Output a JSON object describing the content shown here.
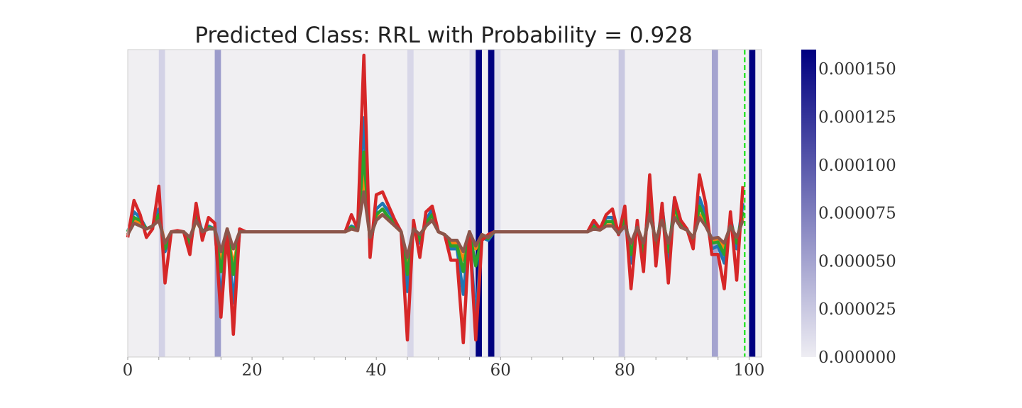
{
  "chart_data": {
    "type": "line",
    "title": "Predicted Class: RRL with Probability = 0.928",
    "xlabel": "",
    "ylabel": "",
    "xlim": [
      0,
      102
    ],
    "ylim": [
      -2.2,
      3.2
    ],
    "x_ticks": [
      0,
      20,
      40,
      60,
      80,
      100
    ],
    "x_tick_labels": [
      "0",
      "20",
      "40",
      "60",
      "80",
      "100"
    ],
    "grid": false,
    "background_color": "#f0eff2",
    "marker_line": {
      "x": 99.3,
      "color": "#00e000",
      "style": "dashed"
    },
    "importance_bands": [
      {
        "x": 5.5,
        "value": 1.8e-05
      },
      {
        "x": 14.5,
        "value": 5.5e-05
      },
      {
        "x": 45.5,
        "value": 1.5e-05
      },
      {
        "x": 55.5,
        "value": 1e-05
      },
      {
        "x": 56.5,
        "value": 0.00016
      },
      {
        "x": 58.5,
        "value": 0.00016
      },
      {
        "x": 59.5,
        "value": 1e-05
      },
      {
        "x": 79.5,
        "value": 2.5e-05
      },
      {
        "x": 94.5,
        "value": 5e-05
      },
      {
        "x": 100.5,
        "value": 0.00016
      }
    ],
    "colorbar": {
      "min": 0.0,
      "max": 0.00016,
      "colors": [
        "#eeedf3",
        "#000080"
      ],
      "ticks": [
        0.0,
        2.5e-05,
        5e-05,
        7.5e-05,
        0.0001,
        0.000125,
        0.00015
      ],
      "tick_labels": [
        "0.000000",
        "0.000025",
        "0.000050",
        "0.000075",
        "0.000100",
        "0.000125",
        "0.000150"
      ]
    },
    "series": [
      {
        "color": "#1f77b4",
        "x": [
          0,
          1,
          2,
          3,
          4,
          5,
          6,
          7,
          8,
          9,
          10,
          11,
          12,
          13,
          14,
          15,
          16,
          17,
          18,
          19,
          20,
          21,
          22,
          23,
          24,
          25,
          26,
          27,
          28,
          29,
          30,
          31,
          32,
          33,
          34,
          35,
          36,
          37,
          38,
          39,
          40,
          41,
          42,
          43,
          44,
          45,
          46,
          47,
          48,
          49,
          50,
          51,
          52,
          53,
          54,
          55,
          56,
          57,
          58,
          59,
          60,
          61,
          62,
          63,
          64,
          65,
          66,
          67,
          68,
          69,
          70,
          71,
          72,
          73,
          74,
          75,
          76,
          77,
          78,
          79,
          80,
          81,
          82,
          83,
          84,
          85,
          86,
          87,
          88,
          89,
          90,
          91,
          92,
          93,
          94,
          95,
          96,
          97,
          98,
          99
        ],
        "y": [
          0,
          0.35,
          0.25,
          0.05,
          0.1,
          0.4,
          -0.35,
          0,
          0,
          0,
          -0.3,
          0.35,
          0,
          0.1,
          0.05,
          -1.2,
          0.05,
          -1.25,
          0,
          0,
          0,
          0,
          0,
          0,
          0,
          0,
          0,
          0,
          0,
          0,
          0,
          0,
          0,
          0,
          0,
          0,
          0.1,
          0.05,
          2.0,
          -0.3,
          0.4,
          0.5,
          0.35,
          0.2,
          0,
          -1.05,
          0.1,
          -0.2,
          0.2,
          0.4,
          0,
          -0.05,
          -0.3,
          -0.3,
          -1.1,
          0,
          -1.6,
          -0.1,
          -0.15,
          0,
          0,
          0,
          0,
          0,
          0,
          0,
          0,
          0,
          0,
          0,
          0,
          0,
          0,
          0,
          0,
          0.12,
          0.05,
          0.25,
          0.25,
          -0.05,
          0.3,
          -0.55,
          0.15,
          -0.5,
          0.75,
          -0.4,
          0.45,
          -0.5,
          0.6,
          0.15,
          0.05,
          -0.2,
          0.6,
          0.3,
          -0.3,
          -0.25,
          -0.55,
          0.25,
          -0.3,
          0.5
        ]
      },
      {
        "color": "#ff7f0e",
        "x": [
          0,
          1,
          2,
          3,
          4,
          5,
          6,
          7,
          8,
          9,
          10,
          11,
          12,
          13,
          14,
          15,
          16,
          17,
          18,
          19,
          20,
          21,
          22,
          23,
          24,
          25,
          26,
          27,
          28,
          29,
          30,
          31,
          32,
          33,
          34,
          35,
          36,
          37,
          38,
          39,
          40,
          41,
          42,
          43,
          44,
          45,
          46,
          47,
          48,
          49,
          50,
          51,
          52,
          53,
          54,
          55,
          56,
          57,
          58,
          59,
          60,
          61,
          62,
          63,
          64,
          65,
          66,
          67,
          68,
          69,
          70,
          71,
          72,
          73,
          74,
          75,
          76,
          77,
          78,
          79,
          80,
          81,
          82,
          83,
          84,
          85,
          86,
          87,
          88,
          89,
          90,
          91,
          92,
          93,
          94,
          95,
          96,
          97,
          98,
          99
        ],
        "y": [
          -0.05,
          0.2,
          0.15,
          0.05,
          0.1,
          0.25,
          -0.2,
          0,
          0,
          0,
          -0.15,
          0.2,
          0,
          0.05,
          0.05,
          -0.55,
          0.05,
          -0.6,
          0,
          0,
          0,
          0,
          0,
          0,
          0,
          0,
          0,
          0,
          0,
          0,
          0,
          0,
          0,
          0,
          0,
          0,
          0.05,
          0.02,
          1.0,
          -0.15,
          0.25,
          0.3,
          0.2,
          0.1,
          0,
          -0.55,
          0.05,
          -0.1,
          0.1,
          0.25,
          0,
          -0.05,
          -0.2,
          -0.2,
          -0.5,
          0,
          -0.3,
          -0.05,
          -0.1,
          0,
          0,
          0,
          0,
          0,
          0,
          0,
          0,
          0,
          0,
          0,
          0,
          0,
          0,
          0,
          0,
          0.06,
          0.03,
          0.12,
          0.12,
          -0.03,
          0.15,
          -0.3,
          0.1,
          -0.25,
          0.4,
          -0.2,
          0.25,
          -0.25,
          0.3,
          0.08,
          0.03,
          -0.1,
          0.3,
          0.15,
          -0.15,
          -0.12,
          -0.3,
          0.12,
          -0.15,
          0.25
        ]
      },
      {
        "color": "#2ca02c",
        "x": [
          0,
          1,
          2,
          3,
          4,
          5,
          6,
          7,
          8,
          9,
          10,
          11,
          12,
          13,
          14,
          15,
          16,
          17,
          18,
          19,
          20,
          21,
          22,
          23,
          24,
          25,
          26,
          27,
          28,
          29,
          30,
          31,
          32,
          33,
          34,
          35,
          36,
          37,
          38,
          39,
          40,
          41,
          42,
          43,
          44,
          45,
          46,
          47,
          48,
          49,
          50,
          51,
          52,
          53,
          54,
          55,
          56,
          57,
          58,
          59,
          60,
          61,
          62,
          63,
          64,
          65,
          66,
          67,
          68,
          69,
          70,
          71,
          72,
          73,
          74,
          75,
          76,
          77,
          78,
          79,
          80,
          81,
          82,
          83,
          84,
          85,
          86,
          87,
          88,
          89,
          90,
          91,
          92,
          93,
          94,
          95,
          96,
          97,
          98,
          99
        ],
        "y": [
          0,
          0.25,
          0.2,
          0.05,
          0.1,
          0.3,
          -0.3,
          0,
          0,
          0,
          -0.2,
          0.25,
          0,
          0.08,
          0.05,
          -0.7,
          0.05,
          -0.75,
          0,
          0,
          0,
          0,
          0,
          0,
          0,
          0,
          0,
          0,
          0,
          0,
          0,
          0,
          0,
          0,
          0,
          0,
          0.08,
          0.03,
          1.4,
          -0.2,
          0.3,
          0.4,
          0.25,
          0.15,
          0,
          -0.75,
          0.08,
          -0.15,
          0.15,
          0.3,
          0,
          -0.05,
          -0.25,
          -0.25,
          -0.7,
          0,
          -0.6,
          -0.08,
          -0.12,
          0,
          0,
          0,
          0,
          0,
          0,
          0,
          0,
          0,
          0,
          0,
          0,
          0,
          0,
          0,
          0,
          0.09,
          0.04,
          0.18,
          0.18,
          -0.04,
          0.22,
          -0.4,
          0.12,
          -0.35,
          0.55,
          -0.3,
          0.35,
          -0.35,
          0.45,
          0.1,
          0.04,
          -0.15,
          0.45,
          0.2,
          -0.2,
          -0.18,
          -0.4,
          0.18,
          -0.2,
          0.35
        ]
      },
      {
        "color": "#d62728",
        "x": [
          0,
          1,
          2,
          3,
          4,
          5,
          6,
          7,
          8,
          9,
          10,
          11,
          12,
          13,
          14,
          15,
          16,
          17,
          18,
          19,
          20,
          21,
          22,
          23,
          24,
          25,
          26,
          27,
          28,
          29,
          30,
          31,
          32,
          33,
          34,
          35,
          36,
          37,
          38,
          39,
          40,
          41,
          42,
          43,
          44,
          45,
          46,
          47,
          48,
          49,
          50,
          51,
          52,
          53,
          54,
          55,
          56,
          57,
          58,
          59,
          60,
          61,
          62,
          63,
          64,
          65,
          66,
          67,
          68,
          69,
          70,
          71,
          72,
          73,
          74,
          75,
          76,
          77,
          78,
          79,
          80,
          81,
          82,
          83,
          84,
          85,
          86,
          87,
          88,
          89,
          90,
          91,
          92,
          93,
          94,
          95,
          96,
          97,
          98,
          99
        ],
        "y": [
          -0.1,
          0.55,
          0.3,
          -0.1,
          0.05,
          0.8,
          -0.9,
          0,
          0.02,
          0,
          -0.4,
          0.5,
          -0.15,
          0.25,
          0.15,
          -1.5,
          0.05,
          -1.8,
          0.05,
          0,
          0,
          0,
          0,
          0,
          0,
          0,
          0,
          0,
          0,
          0,
          0,
          0,
          0,
          0,
          0,
          0,
          0.3,
          0.05,
          3.1,
          -0.45,
          0.65,
          0.7,
          0.45,
          0.2,
          0,
          -1.9,
          0.2,
          -0.45,
          0.35,
          0.45,
          0,
          -0.05,
          -0.5,
          -0.5,
          -1.95,
          0,
          -1.9,
          -0.15,
          -0.05,
          0,
          0,
          0,
          0,
          0,
          0,
          0,
          0,
          0,
          0,
          0,
          0,
          0,
          0,
          0,
          0,
          0.2,
          0.05,
          0.3,
          0.4,
          -0.05,
          0.45,
          -1.0,
          0.2,
          -0.7,
          1.0,
          -0.6,
          0.5,
          -0.9,
          0.6,
          0.2,
          0.05,
          -0.3,
          1.0,
          0.5,
          -0.4,
          -0.4,
          -1.0,
          0.35,
          -0.85,
          0.8
        ]
      },
      {
        "color": "#8c564b",
        "x": [
          0,
          1,
          2,
          3,
          4,
          5,
          6,
          7,
          8,
          9,
          10,
          11,
          12,
          13,
          14,
          15,
          16,
          17,
          18,
          19,
          20,
          21,
          22,
          23,
          24,
          25,
          26,
          27,
          28,
          29,
          30,
          31,
          32,
          33,
          34,
          35,
          36,
          37,
          38,
          39,
          40,
          41,
          42,
          43,
          44,
          45,
          46,
          47,
          48,
          49,
          50,
          51,
          52,
          53,
          54,
          55,
          56,
          57,
          58,
          59,
          60,
          61,
          62,
          63,
          64,
          65,
          66,
          67,
          68,
          69,
          70,
          71,
          72,
          73,
          74,
          75,
          76,
          77,
          78,
          79,
          80,
          81,
          82,
          83,
          84,
          85,
          86,
          87,
          88,
          89,
          90,
          91,
          92,
          93,
          94,
          95,
          96,
          97,
          98,
          99
        ],
        "y": [
          -0.05,
          0.15,
          0.1,
          0.05,
          0.1,
          0.2,
          -0.2,
          0,
          0,
          0,
          -0.1,
          0.2,
          0,
          0.05,
          0.05,
          -0.35,
          0.05,
          -0.3,
          0,
          0,
          0,
          0,
          0,
          0,
          0,
          0,
          0,
          0,
          0,
          0,
          0,
          0,
          0,
          0,
          0,
          0,
          0.05,
          0.02,
          0.7,
          -0.1,
          0.2,
          0.3,
          0.2,
          0.1,
          0,
          -0.45,
          0.05,
          -0.05,
          0.1,
          0.2,
          0,
          -0.05,
          -0.15,
          -0.15,
          -0.35,
          0,
          -0.25,
          -0.05,
          -0.1,
          0,
          0,
          0,
          0,
          0,
          0,
          0,
          0,
          0,
          0,
          0,
          0,
          0,
          0,
          0,
          0,
          0.05,
          0.03,
          0.1,
          0.1,
          -0.03,
          0.1,
          -0.2,
          0.08,
          -0.2,
          0.3,
          -0.15,
          0.2,
          -0.2,
          0.25,
          0.08,
          0.03,
          -0.1,
          0.25,
          0.1,
          -0.12,
          -0.1,
          -0.2,
          0.1,
          -0.1,
          0.2
        ]
      }
    ]
  }
}
